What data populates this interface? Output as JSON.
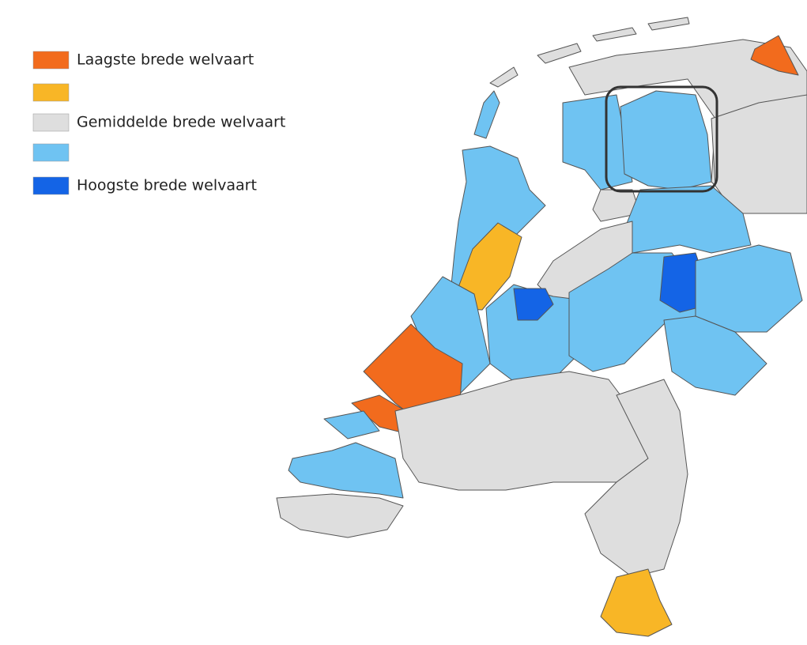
{
  "legend": [
    {
      "color": "#f26b1d",
      "label": "Laagste brede welvaart"
    },
    {
      "color": "#f8b626"
    },
    {
      "color": "#dedede",
      "label": "Gemiddelde brede welvaart"
    },
    {
      "color": "#6fc3f2"
    },
    {
      "color": "#1464e6",
      "label": "Hoogste brede welvaart"
    }
  ]
}
